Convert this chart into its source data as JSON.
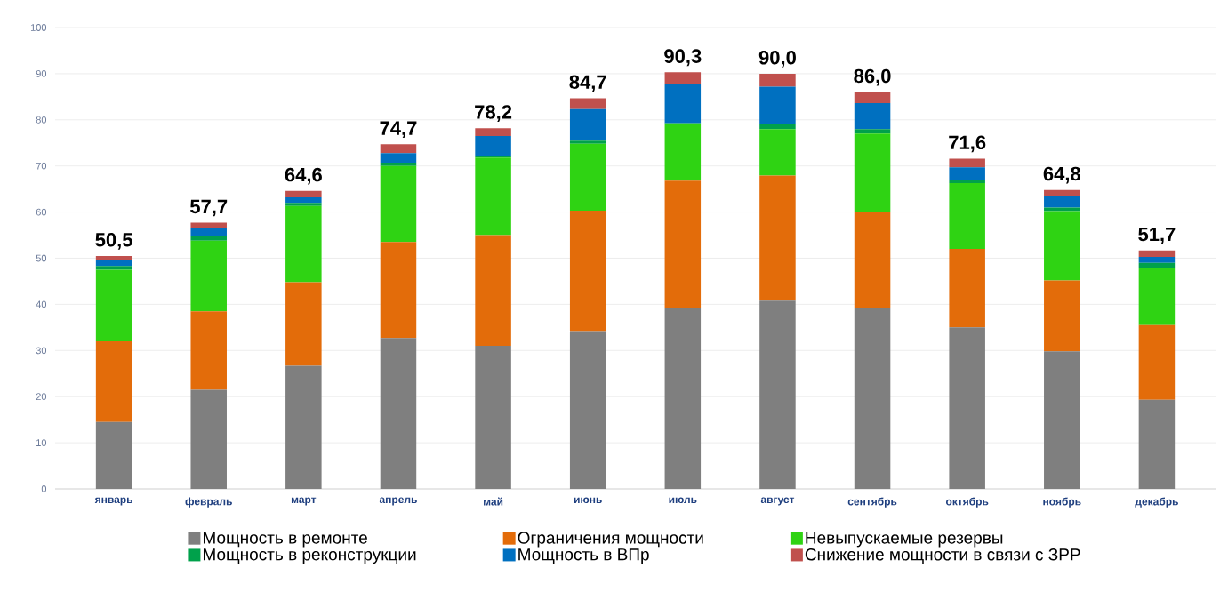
{
  "chart_data": {
    "type": "bar",
    "stacked": true,
    "categories": [
      "январь",
      "февраль",
      "март",
      "апрель",
      "май",
      "июнь",
      "июль",
      "август",
      "сентябрь",
      "октябрь",
      "ноябрь",
      "декабрь"
    ],
    "series": [
      {
        "name": "Мощность в ремонте",
        "color": "#7f7f7f",
        "values": [
          14.5,
          21.5,
          26.7,
          32.7,
          31,
          34.2,
          39.3,
          40.8,
          39.2,
          35,
          29.8,
          19.3
        ]
      },
      {
        "name": "Ограничения мощности",
        "color": "#e36c0a",
        "values": [
          17.5,
          17,
          18.1,
          20.8,
          24,
          26.1,
          27.5,
          27.1,
          20.8,
          17,
          15.4,
          16.2
        ]
      },
      {
        "name": "Невыпускаемые резервы",
        "color": "#2fd313",
        "values": [
          15.5,
          15.3,
          16.5,
          16.5,
          16.8,
          14.5,
          12.2,
          10.1,
          17,
          14.3,
          15,
          12.3
        ]
      },
      {
        "name": "Мощность в реконструкции",
        "color": "#00a14b",
        "values": [
          0.8,
          1,
          0.7,
          0.7,
          0.3,
          0.7,
          0.3,
          1,
          1,
          0.7,
          0.8,
          1.2
        ]
      },
      {
        "name": "Мощность в ВПр",
        "color": "#0070c0",
        "values": [
          1.3,
          1.7,
          1.2,
          2.1,
          4.4,
          6.8,
          8.5,
          8.2,
          5.6,
          2.7,
          2.5,
          1.3
        ]
      },
      {
        "name": "Снижение мощности в связи с ЗРР",
        "color": "#c0504d",
        "values": [
          0.9,
          1.2,
          1.4,
          1.9,
          1.7,
          2.4,
          2.5,
          2.8,
          2.4,
          1.9,
          1.3,
          1.4
        ]
      }
    ],
    "totals": [
      "50,5",
      "57,7",
      "64,6",
      "74,7",
      "78,2",
      "84,7",
      "90,3",
      "90,0",
      "86,0",
      "71,6",
      "64,8",
      "51,7"
    ],
    "ylim": [
      0,
      100
    ],
    "yticks": [
      0,
      10,
      20,
      30,
      40,
      50,
      60,
      70,
      80,
      90,
      100
    ],
    "grid": "y",
    "legend": "bottom"
  }
}
